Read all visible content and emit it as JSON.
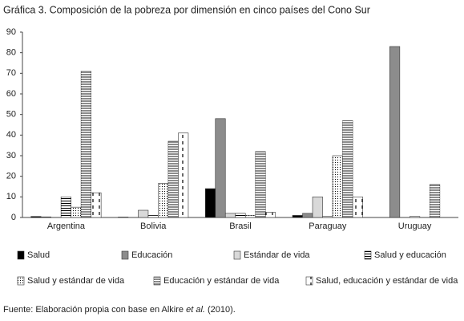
{
  "chart_data": {
    "type": "bar",
    "title": "Gráfica 3. Composición de la pobreza por dimensión en cinco países del Cono Sur",
    "categories": [
      "Argentina",
      "Bolivia",
      "Brasil",
      "Paraguay",
      "Uruguay"
    ],
    "series": [
      {
        "name": "Salud",
        "color": "#000000",
        "values": [
          0.5,
          0.2,
          14,
          1,
          0
        ]
      },
      {
        "name": "Educación",
        "color": "#8c8c8c",
        "values": [
          0.3,
          0,
          48,
          2,
          83
        ]
      },
      {
        "name": "Estándar de vida",
        "color": "#d9d9d9",
        "values": [
          0,
          3.5,
          2,
          10,
          0
        ]
      },
      {
        "name": "Salud y educación",
        "color": "#ffffff",
        "values": [
          10,
          1,
          2,
          0.5,
          0.5
        ]
      },
      {
        "name": "Salud y estándar de vida",
        "color": "#ffffff",
        "values": [
          5,
          16.5,
          1,
          30,
          0
        ]
      },
      {
        "name": "Educación y estándar de vida",
        "color": "#8c8c8c",
        "values": [
          71,
          37,
          32,
          47,
          16
        ]
      },
      {
        "name": "Salud, educación y estándar de vida",
        "color": "#ffffff",
        "values": [
          12,
          41,
          2.5,
          10,
          0
        ]
      }
    ],
    "ylim": [
      0,
      90
    ],
    "yticks": [
      0,
      10,
      20,
      30,
      40,
      50,
      60,
      70,
      80,
      90
    ],
    "grid": false,
    "source": [
      "Fuente: Elaboración propia con base en Alkire ",
      "et al.",
      " (2010)."
    ]
  }
}
